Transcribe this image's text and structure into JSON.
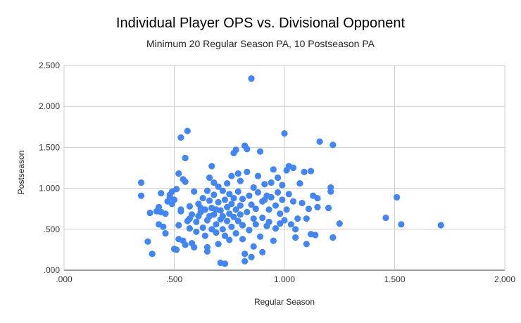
{
  "chart_data": {
    "type": "scatter",
    "title": "Individual Player OPS vs. Divisional Opponent",
    "subtitle": "Minimum 20 Regular Season PA, 10 Postseason PA",
    "xlabel": "Regular Season",
    "ylabel": "Postseason",
    "xlim": [
      0,
      2
    ],
    "ylim": [
      0,
      2.5
    ],
    "x_ticks": [
      ".000",
      ".500",
      "1.000",
      "1.500",
      "2.000"
    ],
    "y_ticks": [
      ".000",
      ".500",
      "1.000",
      "1.500",
      "2.000",
      "2.500"
    ],
    "grid": true,
    "legend": "none",
    "color": "#4285F4",
    "points": [
      [
        0.35,
        1.07
      ],
      [
        0.35,
        0.91
      ],
      [
        0.38,
        0.35
      ],
      [
        0.39,
        0.7
      ],
      [
        0.4,
        0.2
      ],
      [
        0.42,
        0.72
      ],
      [
        0.43,
        0.77
      ],
      [
        0.43,
        0.56
      ],
      [
        0.44,
        0.94
      ],
      [
        0.44,
        0.71
      ],
      [
        0.45,
        0.53
      ],
      [
        0.46,
        0.69
      ],
      [
        0.46,
        0.45
      ],
      [
        0.47,
        0.84
      ],
      [
        0.48,
        0.89
      ],
      [
        0.48,
        0.92
      ],
      [
        0.49,
        0.81
      ],
      [
        0.49,
        0.96
      ],
      [
        0.5,
        0.26
      ],
      [
        0.5,
        0.86
      ],
      [
        0.51,
        0.99
      ],
      [
        0.51,
        0.25
      ],
      [
        0.52,
        0.38
      ],
      [
        0.52,
        1.18
      ],
      [
        0.52,
        0.55
      ],
      [
        0.53,
        1.62
      ],
      [
        0.53,
        0.72
      ],
      [
        0.53,
        0.74
      ],
      [
        0.54,
        0.36
      ],
      [
        0.54,
        1.11
      ],
      [
        0.55,
        1.37
      ],
      [
        0.55,
        1.08
      ],
      [
        0.55,
        0.31
      ],
      [
        0.56,
        1.7
      ],
      [
        0.56,
        0.6
      ],
      [
        0.57,
        0.78
      ],
      [
        0.57,
        0.51
      ],
      [
        0.58,
        0.68
      ],
      [
        0.58,
        0.33
      ],
      [
        0.59,
        0.28
      ],
      [
        0.59,
        0.96
      ],
      [
        0.6,
        0.59
      ],
      [
        0.6,
        0.47
      ],
      [
        0.61,
        0.66
      ],
      [
        0.61,
        0.81
      ],
      [
        0.62,
        0.71
      ],
      [
        0.62,
        0.76
      ],
      [
        0.63,
        0.52
      ],
      [
        0.63,
        0.88
      ],
      [
        0.64,
        0.74
      ],
      [
        0.64,
        0.42
      ],
      [
        0.65,
        0.97
      ],
      [
        0.65,
        0.61
      ],
      [
        0.65,
        0.23
      ],
      [
        0.65,
        0.28
      ],
      [
        0.66,
        1.13
      ],
      [
        0.66,
        0.66
      ],
      [
        0.66,
        0.85
      ],
      [
        0.67,
        1.27
      ],
      [
        0.67,
        0.5
      ],
      [
        0.67,
        0.76
      ],
      [
        0.68,
        0.92
      ],
      [
        0.68,
        1.07
      ],
      [
        0.68,
        0.68
      ],
      [
        0.69,
        0.56
      ],
      [
        0.69,
        0.46
      ],
      [
        0.69,
        0.74
      ],
      [
        0.7,
        0.32
      ],
      [
        0.7,
        0.83
      ],
      [
        0.7,
        1.02
      ],
      [
        0.71,
        0.62
      ],
      [
        0.71,
        0.09
      ],
      [
        0.71,
        0.73
      ],
      [
        0.72,
        0.97
      ],
      [
        0.72,
        0.5
      ],
      [
        0.72,
        0.66
      ],
      [
        0.73,
        0.08
      ],
      [
        0.73,
        0.86
      ],
      [
        0.73,
        0.42
      ],
      [
        0.74,
        0.77
      ],
      [
        0.74,
        1.06
      ],
      [
        0.74,
        0.6
      ],
      [
        0.75,
        0.69
      ],
      [
        0.75,
        0.93
      ],
      [
        0.75,
        0.37
      ],
      [
        0.76,
        0.81
      ],
      [
        0.76,
        1.15
      ],
      [
        0.76,
        0.53
      ],
      [
        0.77,
        1.43
      ],
      [
        0.77,
        0.65
      ],
      [
        0.77,
        0.88
      ],
      [
        0.78,
        0.74
      ],
      [
        0.78,
        1.47
      ],
      [
        0.78,
        0.45
      ],
      [
        0.79,
        1.18
      ],
      [
        0.79,
        0.6
      ],
      [
        0.79,
        0.96
      ],
      [
        0.8,
        0.79
      ],
      [
        0.8,
        1.09
      ],
      [
        0.8,
        0.68
      ],
      [
        0.81,
        0.38
      ],
      [
        0.81,
        0.55
      ],
      [
        0.81,
        0.87
      ],
      [
        0.82,
        1.52
      ],
      [
        0.82,
        0.11
      ],
      [
        0.82,
        0.2
      ],
      [
        0.83,
        1.48
      ],
      [
        0.83,
        0.71
      ],
      [
        0.83,
        1.2
      ],
      [
        0.84,
        0.91
      ],
      [
        0.84,
        0.49
      ],
      [
        0.85,
        2.34
      ],
      [
        0.85,
        0.8
      ],
      [
        0.85,
        0.16
      ],
      [
        0.86,
        0.63
      ],
      [
        0.86,
        0.29
      ],
      [
        0.86,
        1.01
      ],
      [
        0.87,
        0.56
      ],
      [
        0.87,
        0.75
      ],
      [
        0.88,
        0.95
      ],
      [
        0.88,
        1.15
      ],
      [
        0.89,
        1.45
      ],
      [
        0.89,
        0.41
      ],
      [
        0.9,
        0.84
      ],
      [
        0.9,
        0.64
      ],
      [
        0.9,
        0.22
      ],
      [
        0.91,
        0.86
      ],
      [
        0.91,
        1.05
      ],
      [
        0.92,
        0.54
      ],
      [
        0.92,
        0.91
      ],
      [
        0.93,
        0.74
      ],
      [
        0.93,
        0.59
      ],
      [
        0.94,
        1.07
      ],
      [
        0.94,
        0.89
      ],
      [
        0.95,
        1.23
      ],
      [
        0.95,
        0.36
      ],
      [
        0.96,
        0.51
      ],
      [
        0.96,
        0.79
      ],
      [
        0.97,
        0.95
      ],
      [
        0.97,
        1.13
      ],
      [
        0.98,
        0.69
      ],
      [
        0.98,
        0.57
      ],
      [
        0.99,
        1.04
      ],
      [
        0.99,
        0.86
      ],
      [
        1.0,
        1.67
      ],
      [
        1.0,
        0.61
      ],
      [
        1.01,
        1.22
      ],
      [
        1.01,
        0.74
      ],
      [
        1.02,
        1.27
      ],
      [
        1.02,
        0.93
      ],
      [
        1.03,
        0.56
      ],
      [
        1.04,
        1.25
      ],
      [
        1.04,
        0.84
      ],
      [
        1.05,
        0.4
      ],
      [
        1.05,
        0.5
      ],
      [
        1.06,
        0.63
      ],
      [
        1.07,
        1.06
      ],
      [
        1.08,
        0.82
      ],
      [
        1.09,
        1.2
      ],
      [
        1.1,
        0.63
      ],
      [
        1.1,
        0.32
      ],
      [
        1.11,
        0.75
      ],
      [
        1.12,
        1.21
      ],
      [
        1.12,
        0.44
      ],
      [
        1.13,
        0.91
      ],
      [
        1.14,
        0.43
      ],
      [
        1.15,
        0.88
      ],
      [
        1.15,
        0.77
      ],
      [
        1.16,
        1.57
      ],
      [
        1.2,
        0.76
      ],
      [
        1.21,
        1.01
      ],
      [
        1.21,
        0.96
      ],
      [
        1.22,
        1.53
      ],
      [
        1.22,
        0.4
      ],
      [
        1.25,
        0.57
      ],
      [
        1.46,
        0.64
      ],
      [
        1.51,
        0.89
      ],
      [
        1.53,
        0.56
      ],
      [
        1.71,
        0.55
      ],
      [
        0.57,
        0.63
      ]
    ]
  }
}
